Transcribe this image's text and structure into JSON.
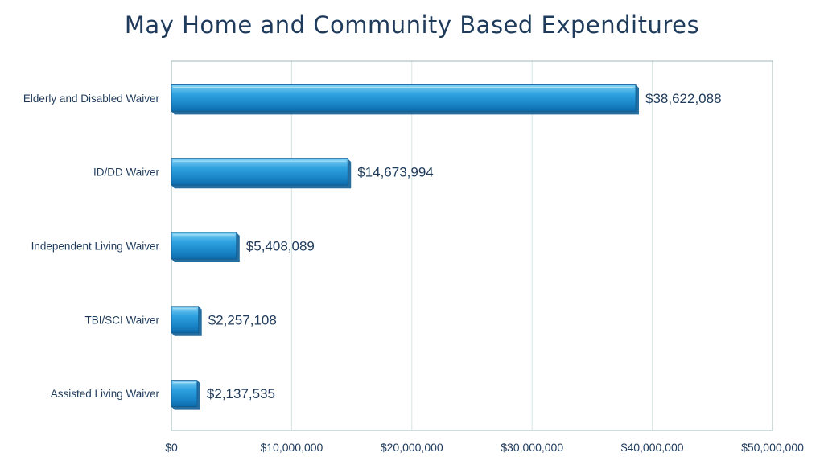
{
  "chart_data": {
    "type": "bar",
    "orientation": "horizontal",
    "title": "May Home and Community Based Expenditures",
    "xlabel": "",
    "ylabel": "",
    "categories": [
      "Elderly and Disabled Waiver",
      "ID/DD Waiver",
      "Independent Living Waiver",
      "TBI/SCI Waiver",
      "Assisted Living Waiver"
    ],
    "values": [
      38622088,
      14673994,
      5408089,
      2257108,
      2137535
    ],
    "data_labels": [
      "$38,622,088",
      "$14,673,994",
      "$5,408,089",
      "$2,257,108",
      "$2,137,535"
    ],
    "xlim": [
      0,
      50000000
    ],
    "x_ticks": [
      0,
      10000000,
      20000000,
      30000000,
      40000000,
      50000000
    ],
    "x_tick_labels": [
      "$0",
      "$10,000,000",
      "$20,000,000",
      "$30,000,000",
      "$40,000,000",
      "$50,000,000"
    ],
    "grid": "vertical",
    "legend": "none",
    "colors": {
      "bar": "#1E8FD2",
      "bar_light": "#5FC0F0",
      "bar_dark": "#0E5E96",
      "title": "#1F3B5C",
      "text": "#1F3B5C",
      "gridline": "#D5E3E3",
      "frame": "#9FB5B5"
    }
  }
}
